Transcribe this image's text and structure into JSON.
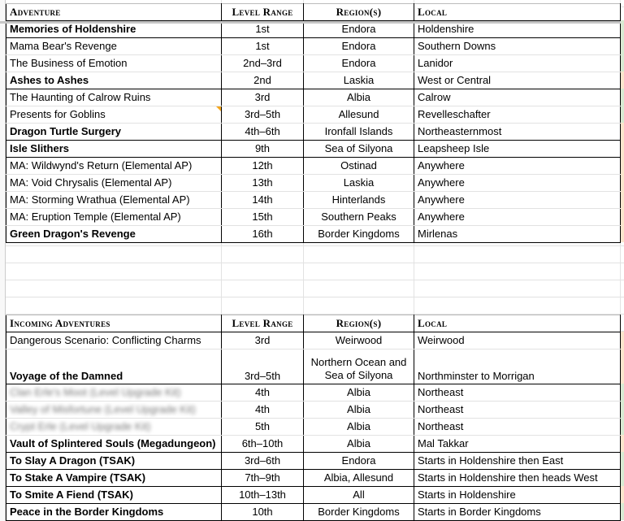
{
  "colors": {
    "green": "#d9ead3",
    "orange": "#fce5cd",
    "comment": "#f4a61d"
  },
  "table1": {
    "headers": [
      "Adventure",
      "Level Range",
      "Region(s)",
      "Local"
    ],
    "rows": [
      {
        "name": "Memories of Holdenshire",
        "level": "1st",
        "region": "Endora",
        "local": "Holdenshire",
        "bold": true,
        "strip": "green"
      },
      {
        "name": "Mama Bear's Revenge",
        "level": "1st",
        "region": "Endora",
        "local": "Southern Downs",
        "bold": false,
        "strip": "green"
      },
      {
        "name": "The Business of Emotion",
        "level": "2nd–3rd",
        "region": "Endora",
        "local": "Lanidor",
        "bold": false,
        "strip": "green"
      },
      {
        "name": "Ashes to Ashes",
        "level": "2nd",
        "region": "Laskia",
        "local": "West or Central",
        "bold": true,
        "strip": "orange"
      },
      {
        "name": "The Haunting of Calrow Ruins",
        "level": "3rd",
        "region": "Albia",
        "local": "Calrow",
        "bold": false,
        "strip": "green"
      },
      {
        "name": "Presents for Goblins",
        "level": "3rd–5th",
        "region": "Allesund",
        "local": "Revelleschafter",
        "bold": false,
        "strip": "green",
        "comment": true
      },
      {
        "name": "Dragon Turtle Surgery",
        "level": "4th–6th",
        "region": "Ironfall Islands",
        "local": "Northeasternmost",
        "bold": true,
        "strip": "orange"
      },
      {
        "name": "Isle Slithers",
        "level": "9th",
        "region": "Sea of Silyona",
        "local": "Leapsheep Isle",
        "bold": true,
        "strip": "orange"
      },
      {
        "name": "MA: Wildwynd's Return (Elemental AP)",
        "level": "12th",
        "region": "Ostinad",
        "local": "Anywhere",
        "bold": false,
        "strip": "orange"
      },
      {
        "name": "MA: Void Chrysalis (Elemental AP)",
        "level": "13th",
        "region": "Laskia",
        "local": "Anywhere",
        "bold": false,
        "strip": "orange"
      },
      {
        "name": "MA: Storming Wrathua (Elemental AP)",
        "level": "14th",
        "region": "Hinterlands",
        "local": "Anywhere",
        "bold": false,
        "strip": "orange"
      },
      {
        "name": "MA: Eruption Temple (Elemental AP)",
        "level": "15th",
        "region": "Southern Peaks",
        "local": "Anywhere",
        "bold": false,
        "strip": "orange"
      },
      {
        "name": "Green Dragon's Revenge",
        "level": "16th",
        "region": "Border Kingdoms",
        "local": "Mirlenas",
        "bold": true,
        "strip": "orange"
      }
    ]
  },
  "table2": {
    "headers": [
      "Incoming Adventures",
      "Level Range",
      "Region(s)",
      "Local"
    ],
    "rows": [
      {
        "name": "Dangerous Scenario: Conflicting Charms",
        "level": "3rd",
        "region": "Weirwood",
        "local": "Weirwood",
        "bold": false,
        "strip": "orange"
      },
      {
        "name": "Voyage of the Damned",
        "level": "3rd–5th",
        "region": "Northern Ocean and Sea of Silyona",
        "local": "Northminster to Morrigan",
        "bold": true,
        "tall": true,
        "strip": "orange"
      },
      {
        "name": "Clan Erle's Moot (Level Upgrade Kit)",
        "level": "4th",
        "region": "Albia",
        "local": "Northeast",
        "bold": false,
        "blur": true,
        "strip": "green"
      },
      {
        "name": "Valley of Misfortune (Level Upgrade Kit)",
        "level": "4th",
        "region": "Albia",
        "local": "Northeast",
        "bold": false,
        "blur": true,
        "strip": "green"
      },
      {
        "name": "Crypt Erle (Level Upgrade Kit)",
        "level": "5th",
        "region": "Albia",
        "local": "Northeast",
        "bold": false,
        "blur": true,
        "strip": "green"
      },
      {
        "name": "Vault of Splintered Souls (Megadungeon)",
        "level": "6th–10th",
        "region": "Albia",
        "local": "Mal Takkar",
        "bold": true,
        "strip": "orange"
      },
      {
        "name": "To Slay A Dragon (TSAK)",
        "level": "3rd–6th",
        "region": "Endora",
        "local": "Starts in Holdenshire then East",
        "bold": true,
        "strip": "green"
      },
      {
        "name": "To Stake A Vampire (TSAK)",
        "level": "7th–9th",
        "region": "Albia, Allesund",
        "local": "Starts in Holdenshire then heads West",
        "bold": true,
        "strip": "green"
      },
      {
        "name": "To Smite A Fiend (TSAK)",
        "level": "10th–13th",
        "region": "All",
        "local": "Starts in Holdenshire",
        "bold": true,
        "strip": "orange"
      },
      {
        "name": "Peace in the Border Kingdoms",
        "level": "10th",
        "region": "Border Kingdoms",
        "local": "Starts in Border Kingdoms",
        "bold": true,
        "strip": "green"
      }
    ]
  }
}
